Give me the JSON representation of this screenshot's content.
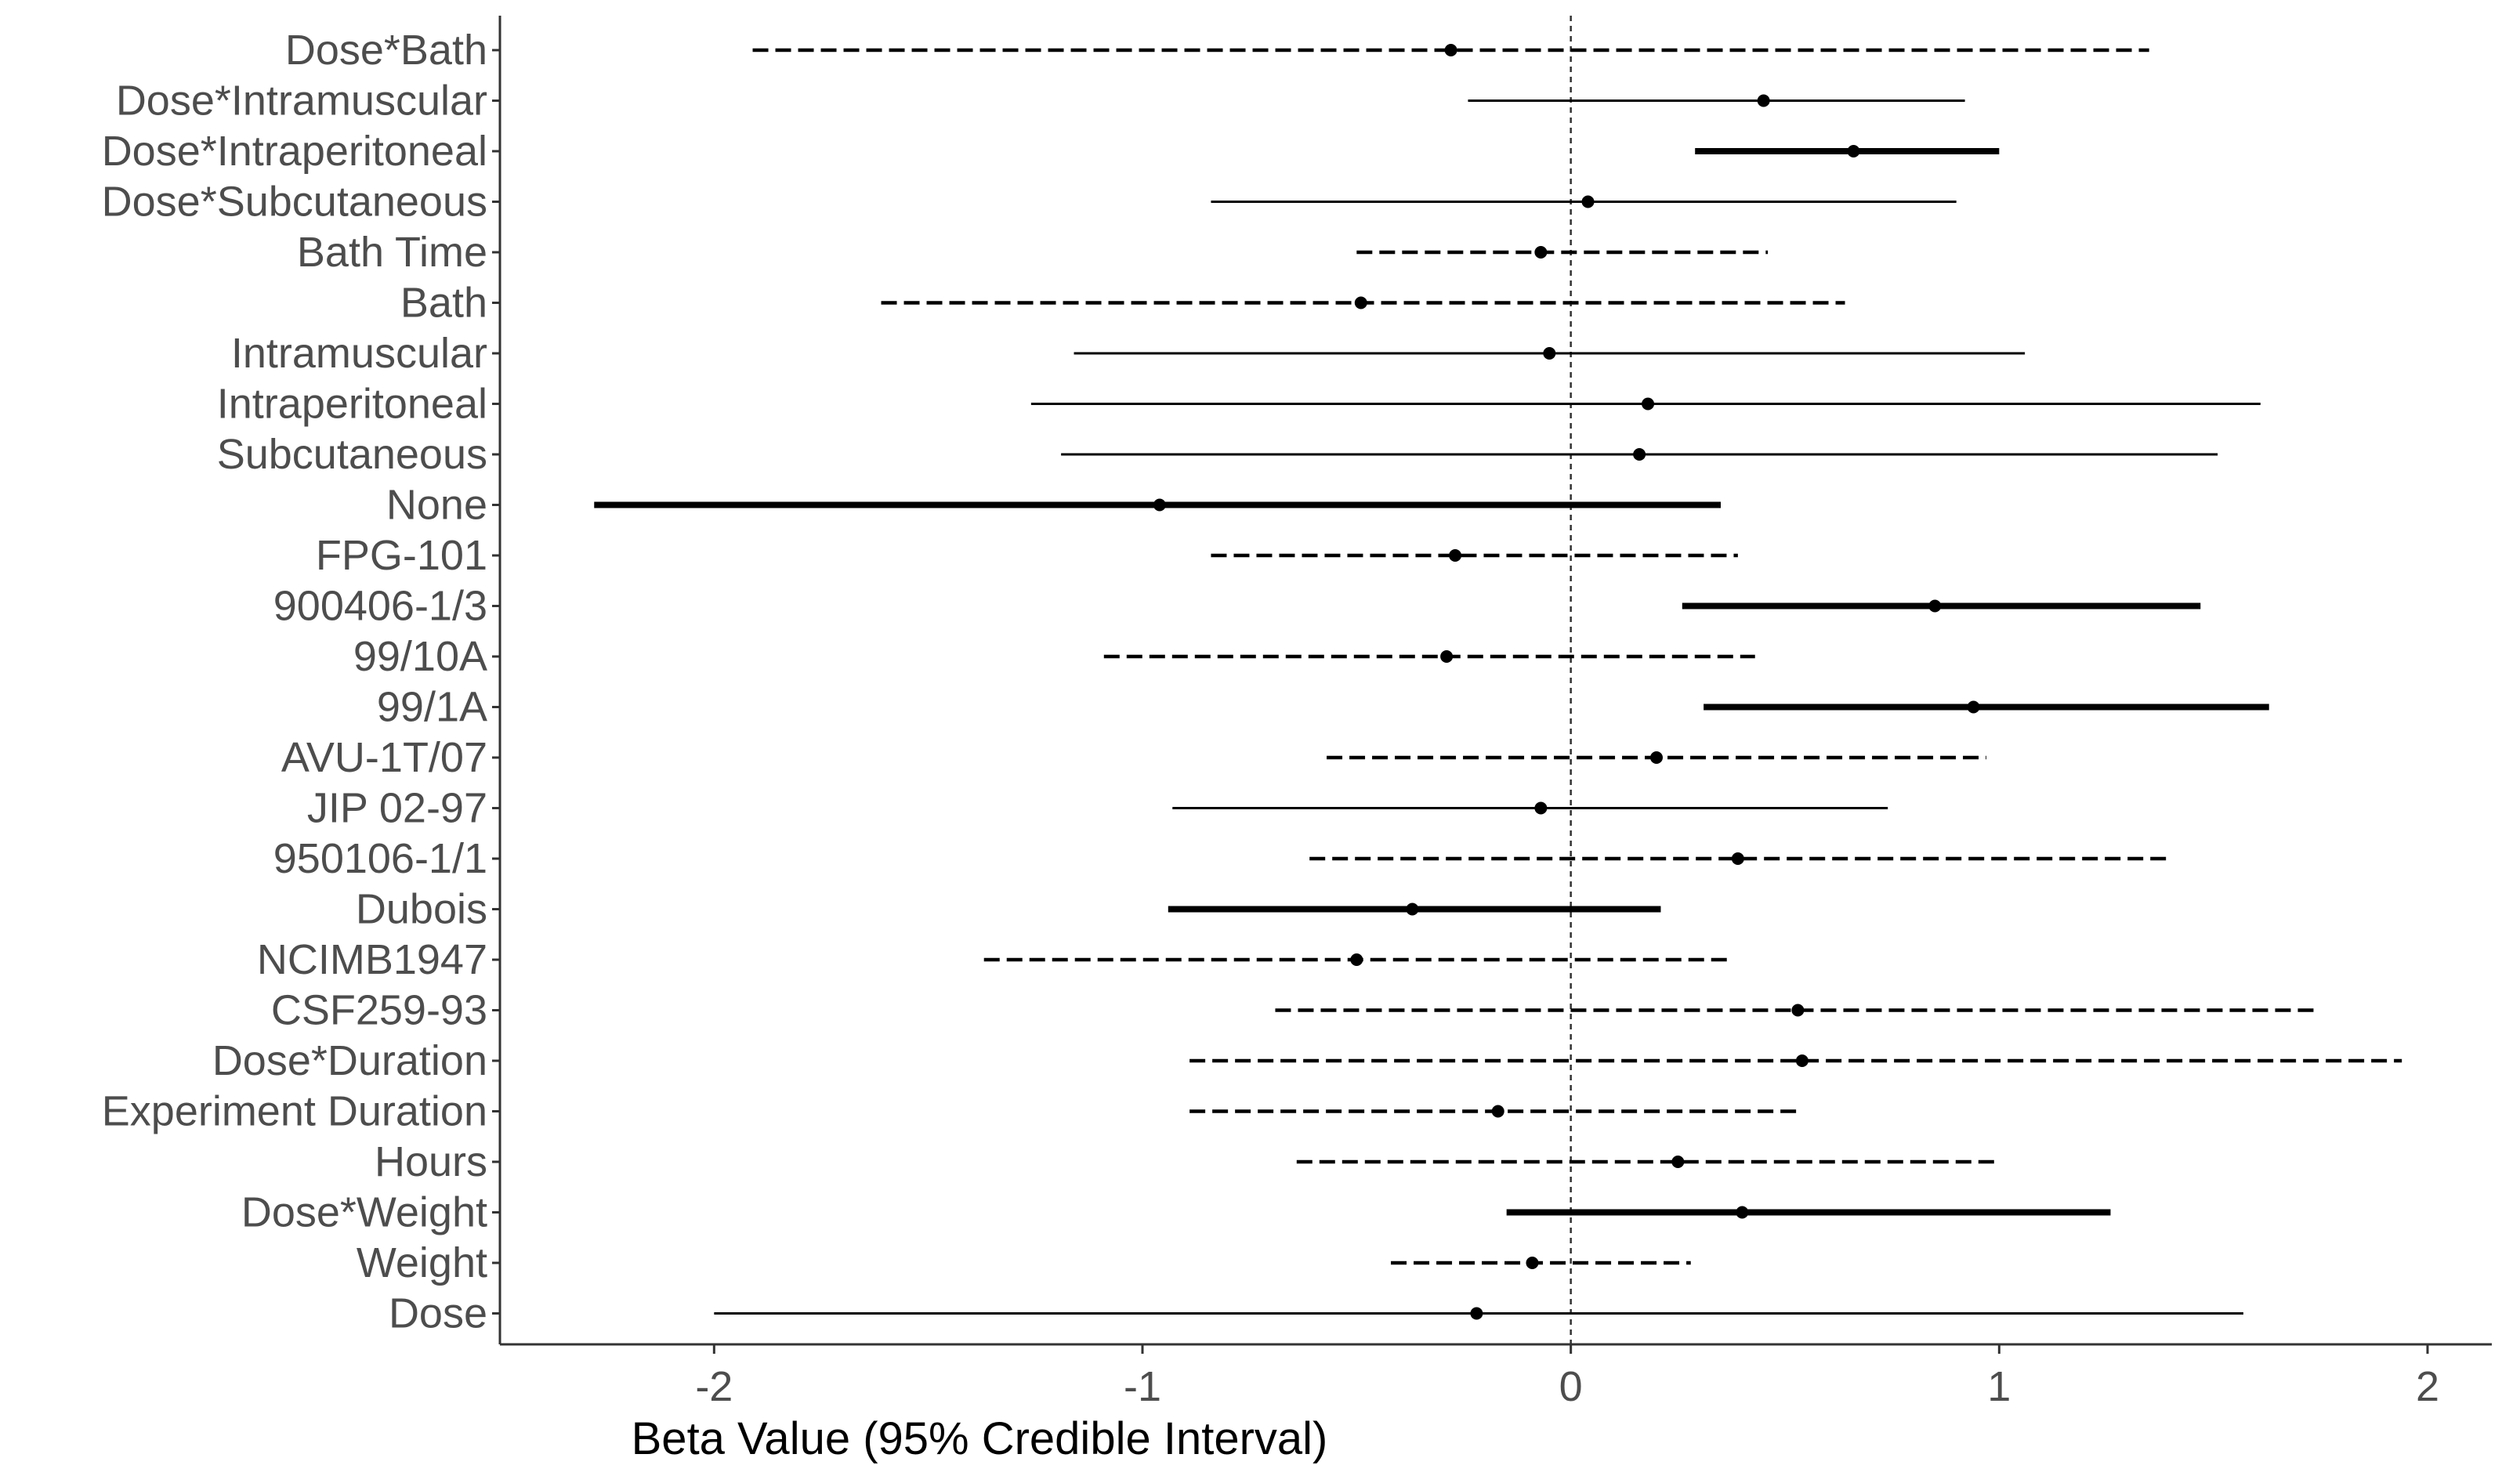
{
  "chart_data": {
    "type": "forest",
    "title": "",
    "xlabel": "Beta Value (95% Credible Interval)",
    "ylabel": "",
    "xlim": [
      -2.5,
      2.15
    ],
    "xticks": [
      {
        "value": -2,
        "label": "-2"
      },
      {
        "value": -1,
        "label": "-1"
      },
      {
        "value": 0,
        "label": "0"
      },
      {
        "value": 1,
        "label": "1"
      },
      {
        "value": 2,
        "label": "2"
      }
    ],
    "reference_line": 0,
    "grid": false,
    "legend": "none",
    "line_styles": [
      "thin-solid",
      "dashed",
      "bold-solid"
    ],
    "rows": [
      {
        "label": "Dose*Bath",
        "estimate": -0.28,
        "lower": -1.91,
        "upper": 1.35,
        "style": "dashed"
      },
      {
        "label": "Dose*Intramuscular",
        "estimate": 0.45,
        "lower": -0.24,
        "upper": 0.92,
        "style": "thin-solid"
      },
      {
        "label": "Dose*Intraperitoneal",
        "estimate": 0.66,
        "lower": 0.29,
        "upper": 1.0,
        "style": "bold-solid"
      },
      {
        "label": "Dose*Subcutaneous",
        "estimate": 0.04,
        "lower": -0.84,
        "upper": 0.9,
        "style": "thin-solid"
      },
      {
        "label": "Bath Time",
        "estimate": -0.07,
        "lower": -0.5,
        "upper": 0.46,
        "style": "dashed"
      },
      {
        "label": "Bath",
        "estimate": -0.49,
        "lower": -1.61,
        "upper": 0.64,
        "style": "dashed"
      },
      {
        "label": "Intramuscular",
        "estimate": -0.05,
        "lower": -1.16,
        "upper": 1.06,
        "style": "thin-solid"
      },
      {
        "label": "Intraperitoneal",
        "estimate": 0.18,
        "lower": -1.26,
        "upper": 1.61,
        "style": "thin-solid"
      },
      {
        "label": "Subcutaneous",
        "estimate": 0.16,
        "lower": -1.19,
        "upper": 1.51,
        "style": "thin-solid"
      },
      {
        "label": "None",
        "estimate": -0.96,
        "lower": -2.28,
        "upper": 0.35,
        "style": "bold-solid"
      },
      {
        "label": "FPG-101",
        "estimate": -0.27,
        "lower": -0.84,
        "upper": 0.39,
        "style": "dashed"
      },
      {
        "label": "900406-1/3",
        "estimate": 0.85,
        "lower": 0.26,
        "upper": 1.47,
        "style": "bold-solid"
      },
      {
        "label": "99/10A",
        "estimate": -0.29,
        "lower": -1.09,
        "upper": 0.43,
        "style": "dashed"
      },
      {
        "label": "99/1A",
        "estimate": 0.94,
        "lower": 0.31,
        "upper": 1.63,
        "style": "bold-solid"
      },
      {
        "label": "AVU-1T/07",
        "estimate": 0.2,
        "lower": -0.57,
        "upper": 0.97,
        "style": "dashed"
      },
      {
        "label": "JIP 02-97",
        "estimate": -0.07,
        "lower": -0.93,
        "upper": 0.74,
        "style": "thin-solid"
      },
      {
        "label": "950106-1/1",
        "estimate": 0.39,
        "lower": -0.61,
        "upper": 1.39,
        "style": "dashed"
      },
      {
        "label": "Dubois",
        "estimate": -0.37,
        "lower": -0.94,
        "upper": 0.21,
        "style": "bold-solid"
      },
      {
        "label": "NCIMB1947",
        "estimate": -0.5,
        "lower": -1.37,
        "upper": 0.37,
        "style": "dashed"
      },
      {
        "label": "CSF259-93",
        "estimate": 0.53,
        "lower": -0.69,
        "upper": 1.75,
        "style": "dashed"
      },
      {
        "label": "Dose*Duration",
        "estimate": 0.54,
        "lower": -0.89,
        "upper": 1.94,
        "style": "dashed"
      },
      {
        "label": "Experiment Duration",
        "estimate": -0.17,
        "lower": -0.89,
        "upper": 0.53,
        "style": "dashed"
      },
      {
        "label": "Hours",
        "estimate": 0.25,
        "lower": -0.64,
        "upper": 1.0,
        "style": "dashed"
      },
      {
        "label": "Dose*Weight",
        "estimate": 0.4,
        "lower": -0.15,
        "upper": 1.26,
        "style": "bold-solid"
      },
      {
        "label": "Weight",
        "estimate": -0.09,
        "lower": -0.42,
        "upper": 0.28,
        "style": "dashed"
      },
      {
        "label": "Dose",
        "estimate": -0.22,
        "lower": -2.0,
        "upper": 1.57,
        "style": "thin-solid"
      }
    ]
  },
  "colors": {
    "line": "#000000",
    "axis": "#333333",
    "tick_text": "#4d4d4d",
    "reference": "#333333",
    "background": "#ffffff"
  }
}
